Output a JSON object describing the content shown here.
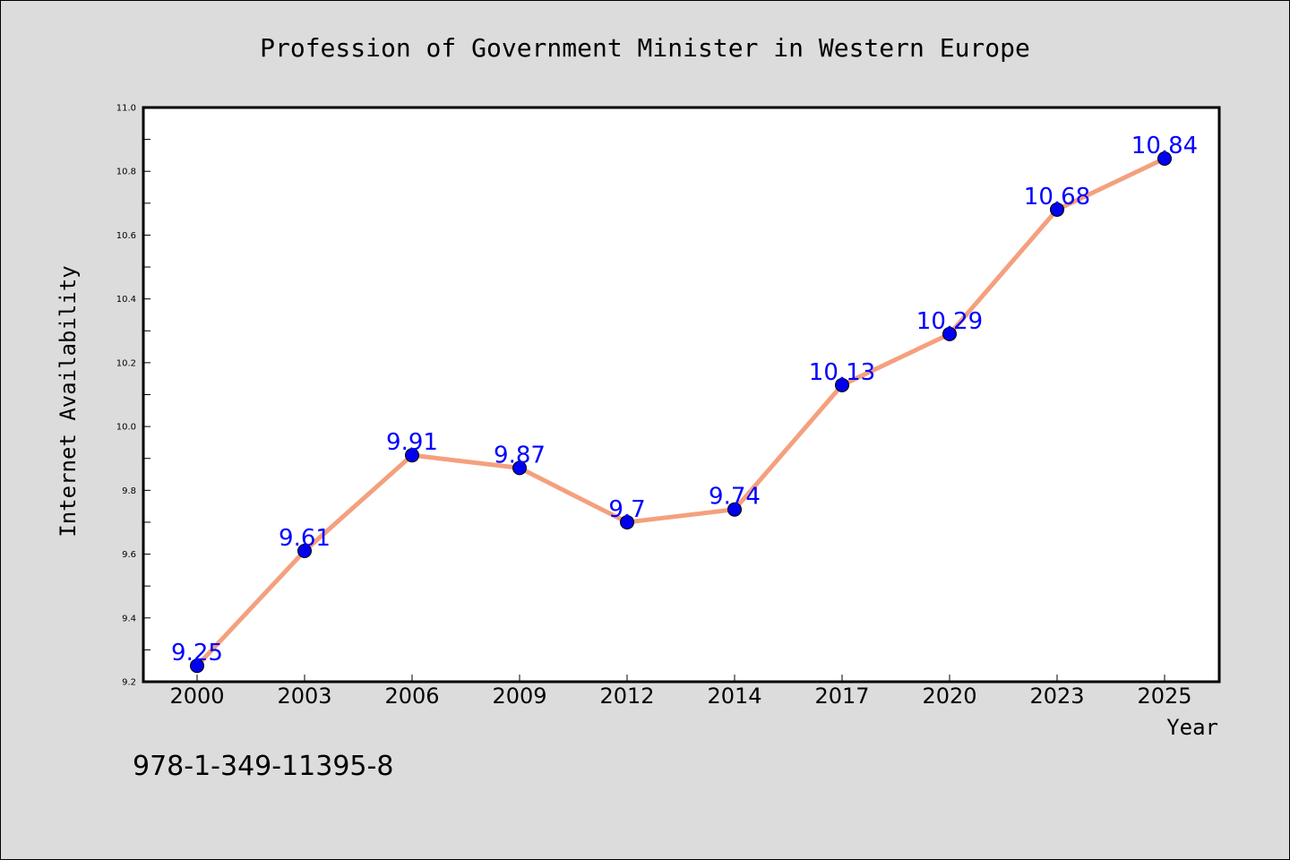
{
  "chart_data": {
    "type": "line",
    "title": "Profession of Government Minister in Western Europe",
    "xlabel": "Year",
    "ylabel": "Internet Availability",
    "categories": [
      "2000",
      "2003",
      "2006",
      "2009",
      "2012",
      "2014",
      "2017",
      "2020",
      "2023",
      "2025"
    ],
    "series": [
      {
        "values": [
          9.25,
          9.61,
          9.91,
          9.87,
          9.7,
          9.74,
          10.13,
          10.29,
          10.68,
          10.84
        ],
        "line_color": "#f4a07e",
        "marker_color": "#0000ee"
      }
    ],
    "data_labels": [
      "9.25",
      "9.61",
      "9.91",
      "9.87",
      "9.7",
      "9.74",
      "10.13",
      "10.29",
      "10.68",
      "10.84"
    ],
    "data_label_color": "#0000ff",
    "ylim": [
      9.2,
      11.0
    ],
    "yticks": [
      "9.2",
      "9.4",
      "9.6",
      "9.8",
      "10.0",
      "10.2",
      "10.4",
      "10.6",
      "10.8",
      "11.0"
    ],
    "ytick_values": [
      9.2,
      9.4,
      9.6,
      9.8,
      10.0,
      10.2,
      10.4,
      10.6,
      10.8,
      11.0
    ],
    "grid": false,
    "legend": "none"
  },
  "footnote": "978-1-349-11395-8"
}
